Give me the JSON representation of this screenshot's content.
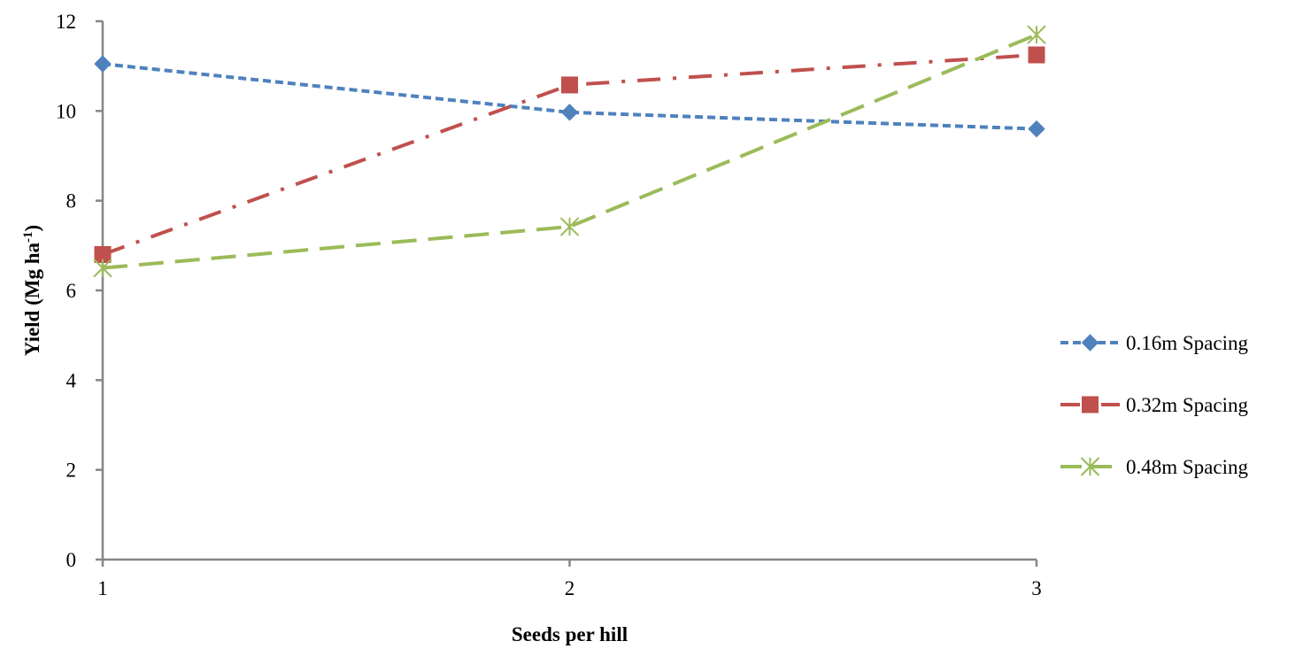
{
  "chart_data": {
    "type": "line",
    "title": "",
    "x": [
      1,
      2,
      3
    ],
    "x_tick_labels": [
      "1",
      "2",
      "3"
    ],
    "xlabel": "Seeds per hill",
    "ylabel": {
      "text": "Yield (Mg ha",
      "superscript": "-1",
      "suffix": ")"
    },
    "ylim": [
      0,
      12
    ],
    "y_ticks": [
      0,
      2,
      4,
      6,
      8,
      10,
      12
    ],
    "grid": false,
    "legend_position": "right",
    "series": [
      {
        "name": "0.16m Spacing",
        "values": [
          11.05,
          9.97,
          9.6
        ],
        "color": "#4F81BD",
        "marker": "diamond",
        "dash": "short-dash"
      },
      {
        "name": "0.32m Spacing",
        "values": [
          6.8,
          10.58,
          11.25
        ],
        "color": "#C0504D",
        "marker": "square",
        "dash": "long-dash-dot"
      },
      {
        "name": "0.48m Spacing",
        "values": [
          6.5,
          7.42,
          11.7
        ],
        "color": "#9BBB59",
        "marker": "star",
        "dash": "long-dash"
      }
    ]
  }
}
